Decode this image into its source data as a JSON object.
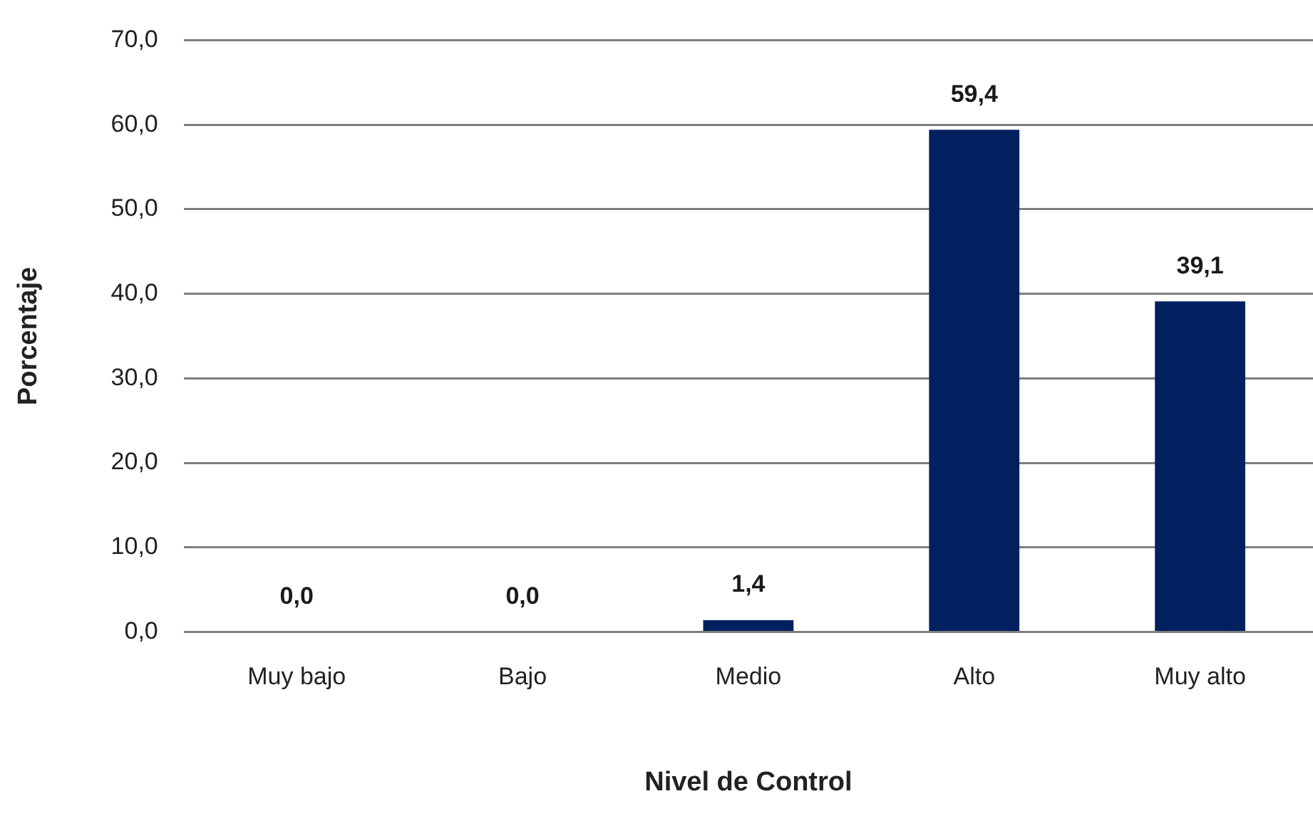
{
  "chart_data": {
    "type": "bar",
    "xlabel": "Nivel de Control",
    "ylabel": "Porcentaje",
    "categories": [
      "Muy bajo",
      "Bajo",
      "Medio",
      "Alto",
      "Muy alto"
    ],
    "values": [
      0.0,
      0.0,
      1.4,
      59.4,
      39.1
    ],
    "value_labels": [
      "0,0",
      "0,0",
      "1,4",
      "59,4",
      "39,1"
    ],
    "color": "#002060",
    "ylim": [
      0,
      70
    ],
    "yticks": [
      {
        "value": 0,
        "label": "0,0"
      },
      {
        "value": 10,
        "label": "10,0"
      },
      {
        "value": 20,
        "label": "20,0"
      },
      {
        "value": 30,
        "label": "30,0"
      },
      {
        "value": 40,
        "label": "40,0"
      },
      {
        "value": 50,
        "label": "50,0"
      },
      {
        "value": 60,
        "label": "60,0"
      },
      {
        "value": 70,
        "label": "70,0"
      }
    ],
    "grid": "y",
    "legend": false
  }
}
